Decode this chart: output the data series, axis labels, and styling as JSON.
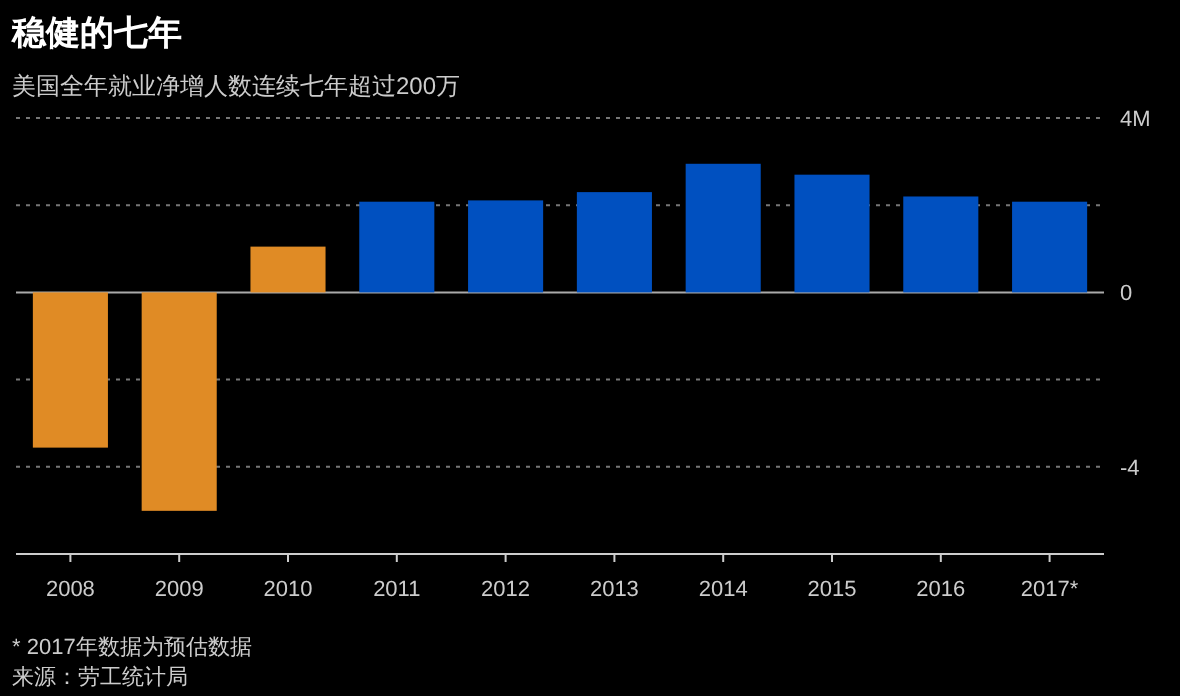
{
  "chart_data": {
    "type": "bar",
    "title": "稳健的七年",
    "subtitle": "美国全年就业净增人数连续七年超过200万",
    "categories": [
      "2008",
      "2009",
      "2010",
      "2011",
      "2012",
      "2013",
      "2014",
      "2015",
      "2016",
      "2017*"
    ],
    "values": [
      -3.56,
      -5.01,
      1.05,
      2.08,
      2.11,
      2.3,
      2.95,
      2.7,
      2.2,
      2.08
    ],
    "colors": [
      "#e08b25",
      "#e08b25",
      "#e08b25",
      "#0050c0",
      "#0050c0",
      "#0050c0",
      "#0050c0",
      "#0050c0",
      "#0050c0",
      "#0050c0"
    ],
    "ylim": [
      -6,
      4
    ],
    "yticks": [
      {
        "value": 4,
        "label": "4M"
      },
      {
        "value": 2,
        "label": null
      },
      0,
      {
        "value": -2,
        "label": null
      },
      -4
    ],
    "grid": "y",
    "annotations": [
      "* 2017年数据为预估数据",
      "来源：劳工统计局"
    ]
  }
}
